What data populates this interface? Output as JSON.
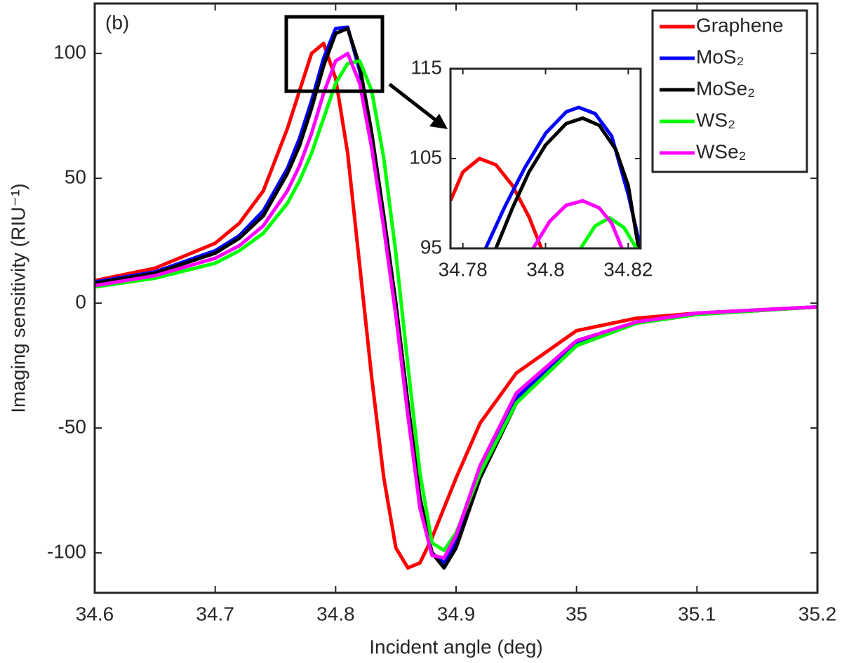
{
  "chart_data": [
    {
      "type": "line",
      "annotation": "(b)",
      "xlabel": "Incident angle (deg)",
      "ylabel": "Imaging sensitivity (RIU⁻¹)",
      "xlim": [
        34.6,
        35.2
      ],
      "ylim": [
        -116,
        120
      ],
      "xticks": [
        34.6,
        34.7,
        34.8,
        34.9,
        35,
        35.1,
        35.2
      ],
      "yticks": [
        -100,
        -50,
        0,
        50,
        100
      ],
      "legend": "upper right",
      "x": [
        34.6,
        34.65,
        34.7,
        34.72,
        34.74,
        34.76,
        34.77,
        34.78,
        34.79,
        34.8,
        34.81,
        34.82,
        34.83,
        34.84,
        34.85,
        34.86,
        34.87,
        34.88,
        34.89,
        34.9,
        34.92,
        34.95,
        35.0,
        35.05,
        35.1,
        35.2
      ],
      "series": [
        {
          "name": "Graphene",
          "color": "#ff0000",
          "values": [
            9,
            14,
            24,
            32,
            45,
            70,
            85,
            100,
            104,
            90,
            60,
            15,
            -30,
            -70,
            -98,
            -106,
            -104,
            -94,
            -82,
            -70,
            -48,
            -28,
            -11,
            -6,
            -4,
            -1.5
          ]
        },
        {
          "name": "MoS₂",
          "color": "#0000ff",
          "values": [
            8.5,
            12.5,
            21,
            27,
            37,
            54,
            66,
            81,
            98,
            110,
            110.5,
            93,
            65,
            32,
            -3,
            -43,
            -80,
            -100,
            -104,
            -96,
            -68,
            -38,
            -16,
            -7.5,
            -4,
            -1.5
          ]
        },
        {
          "name": "MoSe₂",
          "color": "#000000",
          "values": [
            8,
            12,
            20,
            26,
            35,
            52,
            63,
            78,
            95,
            108,
            110,
            95,
            68,
            35,
            0,
            -40,
            -78,
            -100,
            -106,
            -98,
            -70,
            -40,
            -17,
            -8,
            -4.5,
            -1.5
          ]
        },
        {
          "name": "WS₂",
          "color": "#00ff00",
          "values": [
            6.5,
            10,
            16,
            21,
            28,
            40,
            49,
            60,
            74,
            88,
            96,
            97,
            85,
            58,
            20,
            -25,
            -68,
            -96,
            -99,
            -92,
            -68,
            -40,
            -17,
            -8,
            -4.5,
            -1.5
          ]
        },
        {
          "name": "WSe₂",
          "color": "#ff00ff",
          "values": [
            7,
            11,
            18,
            23,
            31,
            45,
            55,
            68,
            84,
            97,
            100,
            88,
            62,
            30,
            -5,
            -45,
            -82,
            -101,
            -102,
            -93,
            -65,
            -36,
            -15,
            -7.5,
            -4,
            -1.5
          ]
        }
      ]
    },
    {
      "type": "line",
      "xlim": [
        34.777,
        34.823
      ],
      "ylim": [
        95,
        115
      ],
      "xticks": [
        34.78,
        34.8,
        34.82
      ],
      "yticks": [
        95,
        105,
        115
      ],
      "series": [
        {
          "color": "#ff0000",
          "x": [
            34.777,
            34.78,
            34.784,
            34.788,
            34.792,
            34.796,
            34.799
          ],
          "values": [
            100.3,
            103.5,
            105,
            104.3,
            102,
            98.5,
            95
          ]
        },
        {
          "color": "#0000ff",
          "x": [
            34.7855,
            34.79,
            34.795,
            34.8,
            34.805,
            34.808,
            34.812,
            34.816,
            34.82,
            34.823
          ],
          "values": [
            95,
            99.5,
            104,
            107.8,
            110.2,
            110.7,
            110,
            107.5,
            101,
            95
          ]
        },
        {
          "color": "#000000",
          "x": [
            34.788,
            34.792,
            34.796,
            34.8,
            34.805,
            34.809,
            34.813,
            34.817,
            34.82,
            34.8225
          ],
          "values": [
            95,
            99.5,
            103.5,
            106.5,
            108.9,
            109.5,
            108.7,
            106,
            102,
            95
          ]
        },
        {
          "color": "#00ff00",
          "x": [
            34.8085,
            34.812,
            34.8155,
            34.819,
            34.822
          ],
          "values": [
            95,
            97.5,
            98.4,
            97.3,
            95
          ]
        },
        {
          "color": "#ff00ff",
          "x": [
            34.797,
            34.801,
            34.805,
            34.809,
            34.813,
            34.816,
            34.8185
          ],
          "values": [
            95,
            98,
            99.8,
            100.3,
            99.5,
            97.8,
            95
          ]
        }
      ]
    }
  ]
}
